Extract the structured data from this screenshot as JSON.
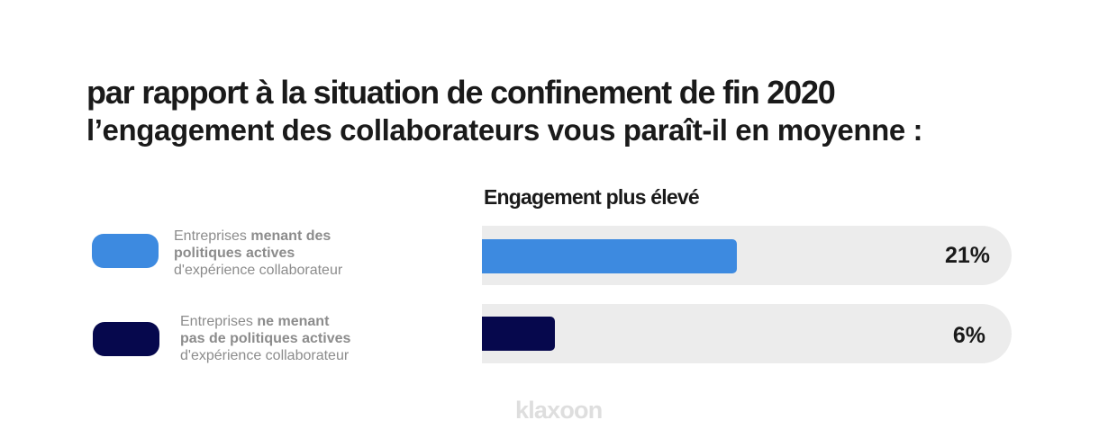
{
  "header": {
    "title": "par rapport à la situation de confinement de fin 2020",
    "subtitle": "l’engagement des collaborateurs vous paraît-il en moyenne :"
  },
  "legend": [
    {
      "color": "#3d8ae0",
      "text_pre": "Entreprises ",
      "text_bold": "menant des politiques actives",
      "text_post": "d'expérience collaborateur"
    },
    {
      "color": "#06084d",
      "text_pre": "Entreprises ",
      "text_bold": "ne menant pas de politiques actives",
      "text_post": "d'expérience collaborateur"
    }
  ],
  "chart_data": {
    "type": "bar",
    "orientation": "horizontal",
    "title": "Engagement plus élevé",
    "unit": "%",
    "xlim": [
      0,
      60
    ],
    "grid": false,
    "legend_position": "left",
    "series": [
      {
        "name": "Entreprises menant des politiques actives d'expérience collaborateur",
        "value": 21,
        "label": "21%",
        "color": "#3d8ae0"
      },
      {
        "name": "Entreprises ne menant pas de politiques actives d'expérience collaborateur",
        "value": 6,
        "label": "6%",
        "color": "#06084d"
      }
    ]
  },
  "logo": {
    "text": "klaxoon"
  }
}
